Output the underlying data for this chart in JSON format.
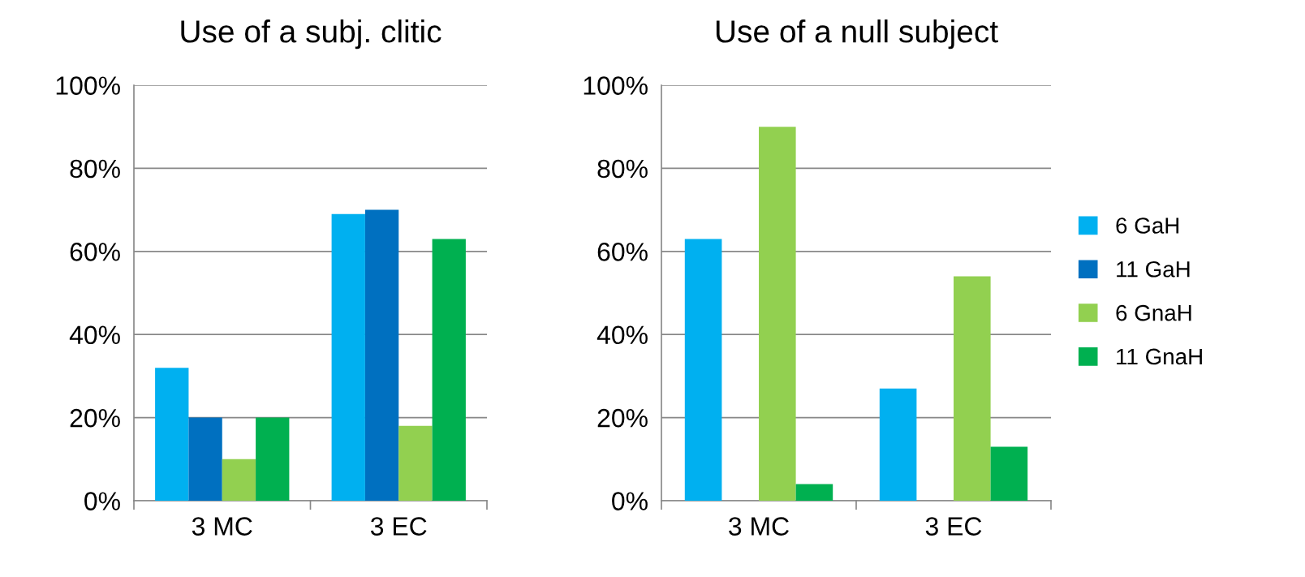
{
  "chart_data": [
    {
      "type": "bar",
      "title": "Use of a subj. clitic",
      "categories": [
        "3 MC",
        "3 EC"
      ],
      "series": [
        {
          "color": "#00b0f0",
          "values": [
            32,
            69
          ]
        },
        {
          "color": "#0070c0",
          "values": [
            20,
            70
          ]
        },
        {
          "color": "#92d050",
          "values": [
            10,
            18
          ]
        },
        {
          "color": "#00b050",
          "values": [
            20,
            63
          ]
        }
      ],
      "ylim": [
        0,
        100
      ],
      "yticks": [
        {
          "value": 0,
          "label": "0%"
        },
        {
          "value": 20,
          "label": "20%"
        },
        {
          "value": 40,
          "label": "40%"
        },
        {
          "value": 60,
          "label": "60%"
        },
        {
          "value": 80,
          "label": "80%"
        },
        {
          "value": 100,
          "label": "100%"
        }
      ],
      "grid": "y",
      "legend": false
    },
    {
      "type": "bar",
      "title": "Use of a null subject",
      "categories": [
        "3 MC",
        "3 EC"
      ],
      "series": [
        {
          "name": "6 GaH",
          "color": "#00b0f0",
          "values": [
            63,
            27
          ]
        },
        {
          "name": "11 GaH",
          "color": "#0070c0",
          "values": [
            null,
            null
          ]
        },
        {
          "name": "6 GnaH",
          "color": "#92d050",
          "values": [
            90,
            54
          ]
        },
        {
          "name": "11 GnaH",
          "color": "#00b050",
          "values": [
            4,
            13
          ]
        }
      ],
      "ylim": [
        0,
        100
      ],
      "yticks": [
        {
          "value": 0,
          "label": "0%"
        },
        {
          "value": 20,
          "label": "20%"
        },
        {
          "value": 40,
          "label": "40%"
        },
        {
          "value": 60,
          "label": "60%"
        },
        {
          "value": 80,
          "label": "80%"
        },
        {
          "value": 100,
          "label": "100%"
        }
      ],
      "grid": "y",
      "legend": "right"
    }
  ]
}
